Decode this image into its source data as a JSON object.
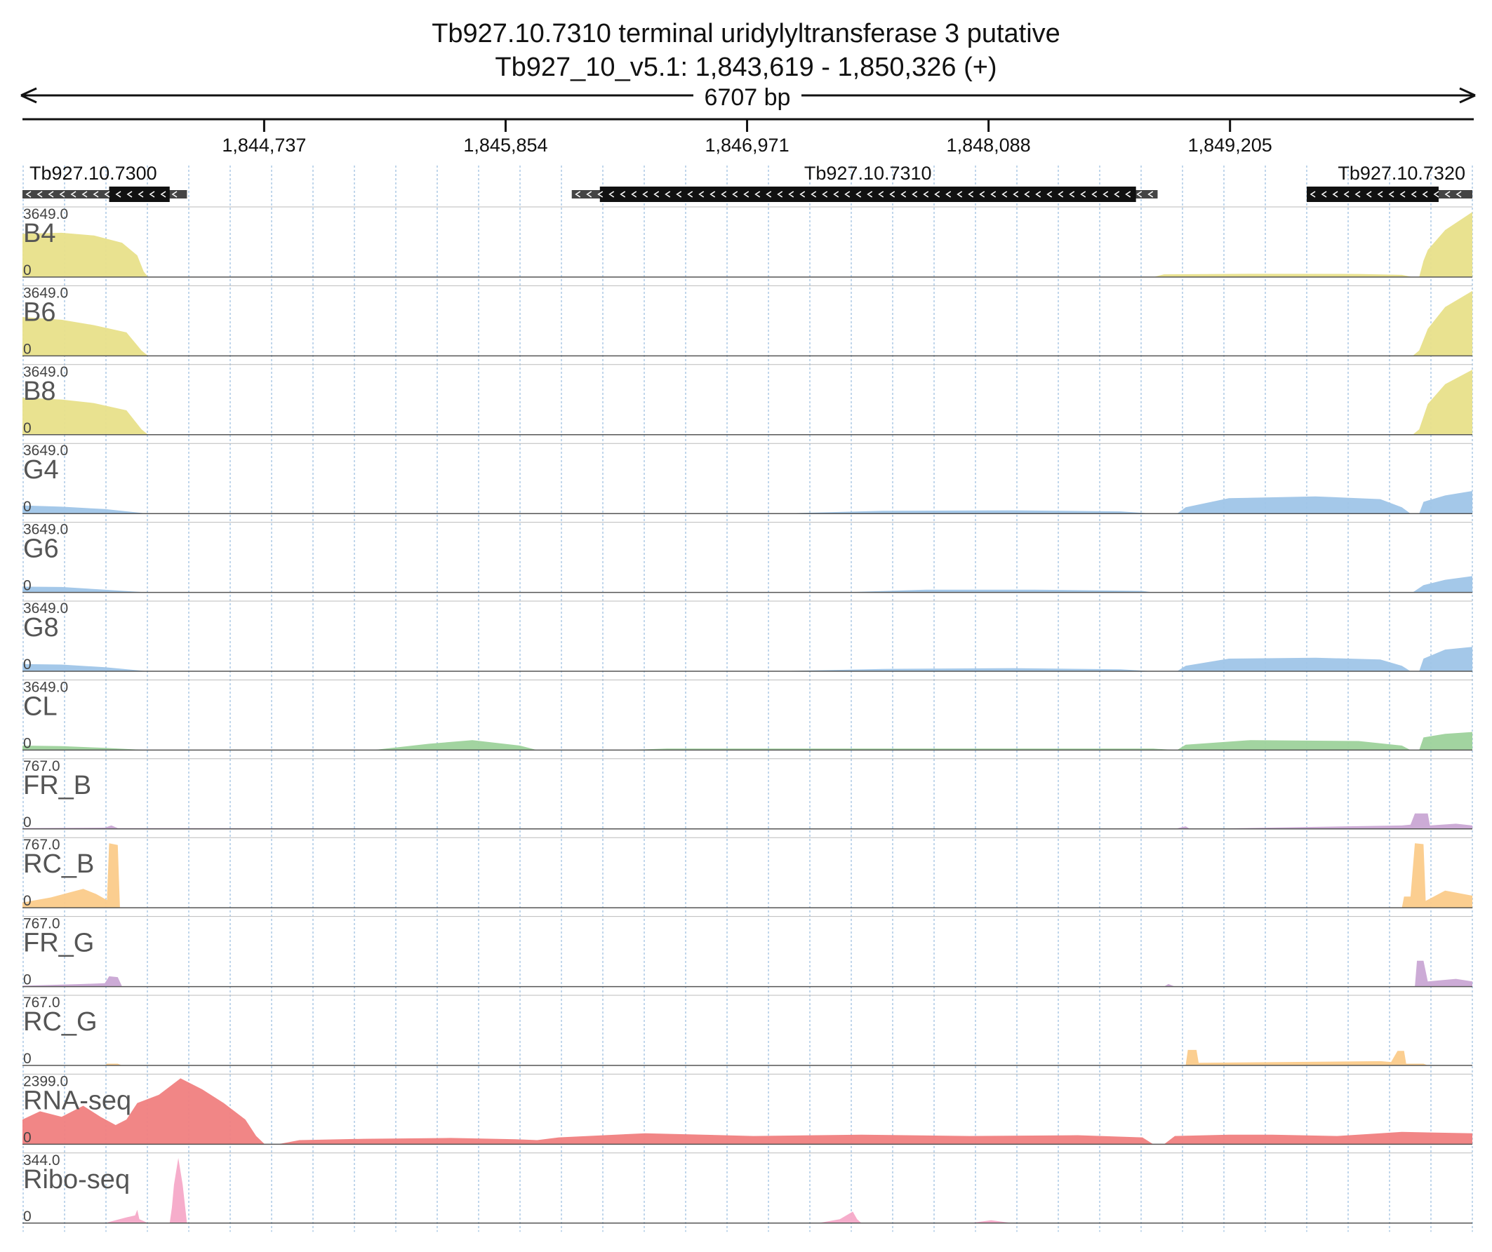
{
  "header": {
    "title": "Tb927.10.7310  terminal uridylyltransferase 3  putative",
    "location": "Tb927_10_v5.1: 1,843,619 - 1,850,326 (+)",
    "span_label": "6707 bp"
  },
  "region": {
    "start": 1843619,
    "end": 1850326
  },
  "ruler": {
    "ticks": [
      {
        "pos": 1844737,
        "label": "1,844,737"
      },
      {
        "pos": 1845854,
        "label": "1,845,854"
      },
      {
        "pos": 1846971,
        "label": "1,846,971"
      },
      {
        "pos": 1848088,
        "label": "1,848,088"
      },
      {
        "pos": 1849205,
        "label": "1,849,205"
      }
    ]
  },
  "genes": [
    {
      "name": "Tb927.10.7300",
      "start": 1843619,
      "end": 1844380,
      "cds_start": 1844020,
      "cds_end": 1844300,
      "strand": "-"
    },
    {
      "name": "Tb927.10.7310",
      "start": 1846160,
      "end": 1848870,
      "cds_start": 1846290,
      "cds_end": 1848770,
      "strand": "-"
    },
    {
      "name": "Tb927.10.7320",
      "start": 1849560,
      "end": 1850326,
      "cds_start": 1849560,
      "cds_end": 1850170,
      "strand": "-"
    }
  ],
  "colors": {
    "yellow": "#e8e08a",
    "blue": "#9fc5e8",
    "green": "#9dd29b",
    "purple": "#c9a6d4",
    "orange": "#fbcb8a",
    "red": "#f08080",
    "pink": "#f5a9c8",
    "grid": "#9fc0e0",
    "gene_body": "#111111",
    "gene_utr": "#444444"
  },
  "tracks": [
    {
      "name": "B4",
      "max_label": "3649.0",
      "min_label": "0",
      "max": 3649,
      "color": "yellow",
      "profile": [
        [
          1843619,
          2400
        ],
        [
          1843800,
          2450
        ],
        [
          1843950,
          2300
        ],
        [
          1844080,
          1900
        ],
        [
          1844150,
          1200
        ],
        [
          1844180,
          300
        ],
        [
          1844200,
          0
        ],
        [
          1848850,
          0
        ],
        [
          1848900,
          150
        ],
        [
          1849300,
          180
        ],
        [
          1849800,
          170
        ],
        [
          1850000,
          120
        ],
        [
          1850050,
          0
        ],
        [
          1850080,
          0
        ],
        [
          1850100,
          900
        ],
        [
          1850120,
          1500
        ],
        [
          1850200,
          2600
        ],
        [
          1850326,
          3600
        ]
      ]
    },
    {
      "name": "B6",
      "max_label": "3649.0",
      "min_label": "0",
      "max": 3649,
      "color": "yellow",
      "profile": [
        [
          1843619,
          2150
        ],
        [
          1843800,
          2000
        ],
        [
          1843950,
          1700
        ],
        [
          1844100,
          1300
        ],
        [
          1844170,
          300
        ],
        [
          1844200,
          0
        ],
        [
          1850050,
          0
        ],
        [
          1850080,
          300
        ],
        [
          1850120,
          1500
        ],
        [
          1850200,
          2700
        ],
        [
          1850326,
          3600
        ]
      ]
    },
    {
      "name": "B8",
      "max_label": "3649.0",
      "min_label": "0",
      "max": 3649,
      "color": "yellow",
      "profile": [
        [
          1843619,
          2050
        ],
        [
          1843800,
          1950
        ],
        [
          1843950,
          1750
        ],
        [
          1844100,
          1350
        ],
        [
          1844170,
          300
        ],
        [
          1844200,
          0
        ],
        [
          1850050,
          0
        ],
        [
          1850080,
          300
        ],
        [
          1850120,
          1700
        ],
        [
          1850200,
          2800
        ],
        [
          1850326,
          3600
        ]
      ]
    },
    {
      "name": "G4",
      "max_label": "3649.0",
      "min_label": "0",
      "max": 3649,
      "color": "blue",
      "profile": [
        [
          1843619,
          450
        ],
        [
          1843800,
          380
        ],
        [
          1844000,
          250
        ],
        [
          1844200,
          0
        ],
        [
          1847100,
          0
        ],
        [
          1847600,
          150
        ],
        [
          1848200,
          180
        ],
        [
          1848700,
          120
        ],
        [
          1848850,
          0
        ],
        [
          1848960,
          0
        ],
        [
          1849000,
          350
        ],
        [
          1849200,
          850
        ],
        [
          1849600,
          950
        ],
        [
          1849900,
          800
        ],
        [
          1850000,
          350
        ],
        [
          1850040,
          0
        ],
        [
          1850080,
          0
        ],
        [
          1850100,
          650
        ],
        [
          1850200,
          1000
        ],
        [
          1850326,
          1250
        ]
      ]
    },
    {
      "name": "G6",
      "max_label": "3649.0",
      "min_label": "0",
      "max": 3649,
      "color": "blue",
      "profile": [
        [
          1843619,
          320
        ],
        [
          1843800,
          300
        ],
        [
          1844000,
          150
        ],
        [
          1844200,
          0
        ],
        [
          1847400,
          0
        ],
        [
          1847800,
          150
        ],
        [
          1848300,
          150
        ],
        [
          1848800,
          80
        ],
        [
          1848850,
          0
        ],
        [
          1850050,
          0
        ],
        [
          1850100,
          400
        ],
        [
          1850200,
          700
        ],
        [
          1850326,
          900
        ]
      ]
    },
    {
      "name": "G8",
      "max_label": "3649.0",
      "min_label": "0",
      "max": 3649,
      "color": "blue",
      "profile": [
        [
          1843619,
          400
        ],
        [
          1843800,
          370
        ],
        [
          1844000,
          220
        ],
        [
          1844200,
          0
        ],
        [
          1847100,
          0
        ],
        [
          1847600,
          130
        ],
        [
          1848200,
          170
        ],
        [
          1848700,
          110
        ],
        [
          1848850,
          0
        ],
        [
          1848960,
          0
        ],
        [
          1849000,
          300
        ],
        [
          1849200,
          700
        ],
        [
          1849600,
          750
        ],
        [
          1849900,
          650
        ],
        [
          1850000,
          300
        ],
        [
          1850040,
          0
        ],
        [
          1850080,
          0
        ],
        [
          1850100,
          700
        ],
        [
          1850200,
          1200
        ],
        [
          1850326,
          1350
        ]
      ]
    },
    {
      "name": "CL",
      "max_label": "3649.0",
      "min_label": "0",
      "max": 3649,
      "color": "green",
      "profile": [
        [
          1843619,
          250
        ],
        [
          1843800,
          220
        ],
        [
          1844000,
          120
        ],
        [
          1844200,
          0
        ],
        [
          1845240,
          0
        ],
        [
          1845500,
          350
        ],
        [
          1845700,
          550
        ],
        [
          1845920,
          250
        ],
        [
          1846000,
          0
        ],
        [
          1846400,
          0
        ],
        [
          1846600,
          80
        ],
        [
          1848850,
          80
        ],
        [
          1848960,
          0
        ],
        [
          1849000,
          300
        ],
        [
          1849300,
          550
        ],
        [
          1849800,
          500
        ],
        [
          1850000,
          250
        ],
        [
          1850040,
          0
        ],
        [
          1850080,
          0
        ],
        [
          1850100,
          700
        ],
        [
          1850200,
          900
        ],
        [
          1850326,
          1000
        ]
      ]
    },
    {
      "name": "FR_B",
      "max_label": "767.0",
      "min_label": "0",
      "max": 767,
      "color": "purple",
      "profile": [
        [
          1843619,
          10
        ],
        [
          1844000,
          15
        ],
        [
          1844030,
          40
        ],
        [
          1844060,
          10
        ],
        [
          1848950,
          0
        ],
        [
          1849000,
          30
        ],
        [
          1849020,
          0
        ],
        [
          1850000,
          40
        ],
        [
          1850040,
          50
        ],
        [
          1850060,
          180
        ],
        [
          1850120,
          180
        ],
        [
          1850130,
          40
        ],
        [
          1850250,
          60
        ],
        [
          1850326,
          40
        ]
      ]
    },
    {
      "name": "RC_B",
      "max_label": "767.0",
      "min_label": "0",
      "max": 767,
      "color": "orange",
      "profile": [
        [
          1843619,
          60
        ],
        [
          1843750,
          120
        ],
        [
          1843900,
          220
        ],
        [
          1843960,
          160
        ],
        [
          1844010,
          90
        ],
        [
          1844020,
          750
        ],
        [
          1844060,
          730
        ],
        [
          1844070,
          0
        ],
        [
          1850000,
          0
        ],
        [
          1850010,
          130
        ],
        [
          1850040,
          130
        ],
        [
          1850060,
          750
        ],
        [
          1850100,
          740
        ],
        [
          1850110,
          80
        ],
        [
          1850200,
          200
        ],
        [
          1850326,
          140
        ]
      ]
    },
    {
      "name": "FR_G",
      "max_label": "767.0",
      "min_label": "0",
      "max": 767,
      "color": "purple",
      "profile": [
        [
          1843619,
          10
        ],
        [
          1843900,
          30
        ],
        [
          1844000,
          40
        ],
        [
          1844020,
          120
        ],
        [
          1844060,
          110
        ],
        [
          1844080,
          0
        ],
        [
          1848900,
          0
        ],
        [
          1848920,
          30
        ],
        [
          1848950,
          0
        ],
        [
          1850060,
          0
        ],
        [
          1850070,
          300
        ],
        [
          1850100,
          300
        ],
        [
          1850120,
          60
        ],
        [
          1850250,
          90
        ],
        [
          1850326,
          60
        ]
      ]
    },
    {
      "name": "RC_G",
      "max_label": "767.0",
      "min_label": "0",
      "max": 767,
      "color": "orange",
      "profile": [
        [
          1843619,
          0
        ],
        [
          1844000,
          0
        ],
        [
          1844010,
          20
        ],
        [
          1844060,
          20
        ],
        [
          1844080,
          0
        ],
        [
          1849000,
          0
        ],
        [
          1849010,
          180
        ],
        [
          1849050,
          180
        ],
        [
          1849060,
          30
        ],
        [
          1849900,
          50
        ],
        [
          1849950,
          40
        ],
        [
          1849980,
          170
        ],
        [
          1850010,
          170
        ],
        [
          1850020,
          20
        ],
        [
          1850100,
          20
        ],
        [
          1850120,
          0
        ]
      ]
    },
    {
      "name": "RNA-seq",
      "max_label": "2399.0",
      "min_label": "0",
      "max": 2399,
      "color": "red",
      "profile": [
        [
          1843619,
          900
        ],
        [
          1843700,
          1200
        ],
        [
          1843800,
          1000
        ],
        [
          1843900,
          1400
        ],
        [
          1843980,
          1000
        ],
        [
          1844050,
          700
        ],
        [
          1844100,
          900
        ],
        [
          1844150,
          1500
        ],
        [
          1844250,
          1800
        ],
        [
          1844350,
          2400
        ],
        [
          1844450,
          2000
        ],
        [
          1844550,
          1500
        ],
        [
          1844650,
          900
        ],
        [
          1844700,
          300
        ],
        [
          1844740,
          0
        ],
        [
          1844800,
          0
        ],
        [
          1844900,
          150
        ],
        [
          1845200,
          200
        ],
        [
          1845600,
          230
        ],
        [
          1845900,
          180
        ],
        [
          1846000,
          150
        ],
        [
          1846100,
          250
        ],
        [
          1846500,
          400
        ],
        [
          1847000,
          300
        ],
        [
          1847500,
          350
        ],
        [
          1848000,
          300
        ],
        [
          1848500,
          330
        ],
        [
          1848800,
          250
        ],
        [
          1848850,
          0
        ],
        [
          1848900,
          0
        ],
        [
          1848950,
          300
        ],
        [
          1849200,
          350
        ],
        [
          1849400,
          350
        ],
        [
          1849700,
          300
        ],
        [
          1849900,
          400
        ],
        [
          1850000,
          450
        ],
        [
          1850326,
          400
        ]
      ]
    },
    {
      "name": "Ribo-seq",
      "max_label": "344.0",
      "min_label": "0",
      "max": 344,
      "color": "pink",
      "profile": [
        [
          1843619,
          0
        ],
        [
          1844000,
          0
        ],
        [
          1844100,
          30
        ],
        [
          1844140,
          40
        ],
        [
          1844150,
          70
        ],
        [
          1844160,
          20
        ],
        [
          1844200,
          0
        ],
        [
          1844300,
          0
        ],
        [
          1844310,
          80
        ],
        [
          1844320,
          200
        ],
        [
          1844340,
          340
        ],
        [
          1844360,
          200
        ],
        [
          1844380,
          0
        ],
        [
          1847300,
          0
        ],
        [
          1847400,
          20
        ],
        [
          1847460,
          60
        ],
        [
          1847480,
          20
        ],
        [
          1847500,
          0
        ],
        [
          1848000,
          0
        ],
        [
          1848100,
          15
        ],
        [
          1848200,
          0
        ],
        [
          1850326,
          0
        ]
      ]
    }
  ]
}
